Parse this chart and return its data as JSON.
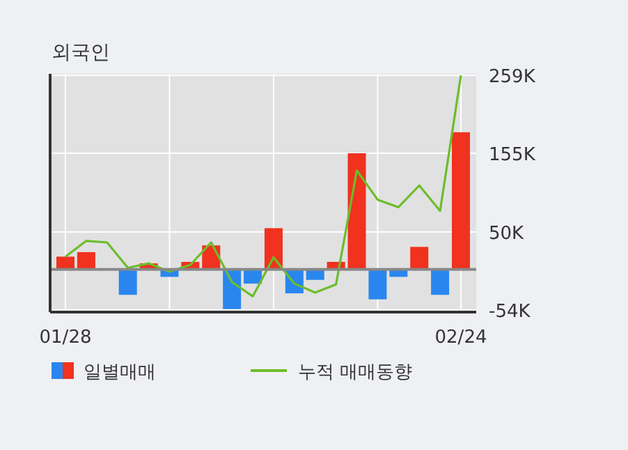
{
  "chart_data": {
    "type": "bar",
    "title": "외국인",
    "categories": [
      "01/28",
      null,
      null,
      null,
      null,
      null,
      null,
      null,
      null,
      null,
      null,
      null,
      null,
      null,
      null,
      null,
      null,
      null,
      null,
      "02/24"
    ],
    "series": [
      {
        "name": "일별매매",
        "colors": [
          "#f0321e",
          "#f0321e",
          "#f0321e",
          "#2a86ef",
          "#f0321e",
          "#2a86ef",
          "#f0321e",
          "#f0321e",
          "#2a86ef",
          "#2a86ef",
          "#f0321e",
          "#2a86ef",
          "#2a86ef",
          "#f0321e",
          "#f0321e",
          "#2a86ef",
          "#2a86ef",
          "#f0321e",
          "#2a86ef",
          "#f0321e"
        ],
        "values": [
          17,
          23,
          0,
          -34,
          8,
          -10,
          10,
          32,
          -53,
          -19,
          55,
          -32,
          -14,
          10,
          155,
          -40,
          -10,
          30,
          -34,
          183
        ]
      },
      {
        "name": "누적 매매동향",
        "type": "line",
        "color": "#6cbd2a",
        "values": [
          17,
          38,
          36,
          2,
          8,
          -3,
          6,
          36,
          -17,
          -36,
          16,
          -19,
          -31,
          -20,
          132,
          93,
          83,
          112,
          78,
          259
        ]
      }
    ],
    "ylim": [
      -57,
      261
    ],
    "yticks": [
      {
        "value": -54,
        "label": "-54K"
      },
      {
        "value": 50,
        "label": "50K"
      },
      {
        "value": 155,
        "label": "155K"
      },
      {
        "value": 259,
        "label": "259K"
      }
    ],
    "grid": true,
    "legend": "bottom",
    "ref_lines": [
      {
        "axis": "y",
        "value": 0,
        "color": "#888888"
      }
    ]
  }
}
